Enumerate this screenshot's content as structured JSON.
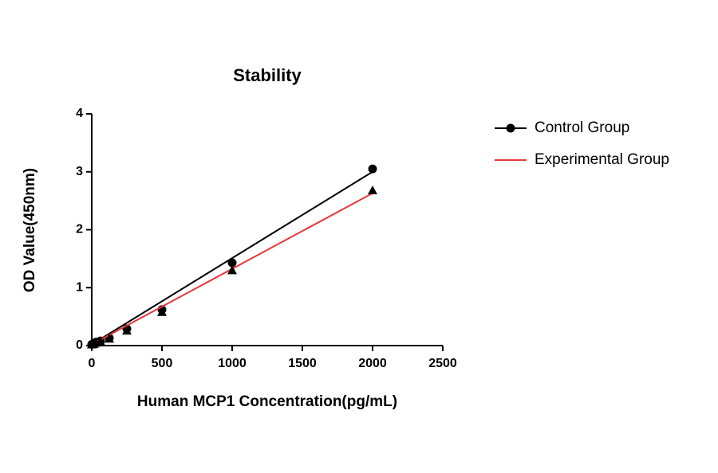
{
  "chart_data": {
    "type": "scatter",
    "title": "Stability",
    "x_label": "Human MCP1 Concentration(pg/mL)",
    "y_label": "OD Value(450nm)",
    "x": [
      0,
      15.6,
      31.25,
      62.5,
      125,
      250,
      500,
      1000,
      2000
    ],
    "series": [
      {
        "name": "Control Group",
        "color": "#000000",
        "marker": "circle",
        "line_color": "#000000",
        "values": [
          0.02,
          0.04,
          0.06,
          0.08,
          0.13,
          0.29,
          0.62,
          1.43,
          3.05
        ],
        "fit_x": [
          0,
          2000
        ],
        "fit": [
          0.02,
          3.0
        ]
      },
      {
        "name": "Experimental Group",
        "color": "#000000",
        "marker": "triangle",
        "line_color": "#e8383b",
        "values": [
          0.02,
          0.03,
          0.05,
          0.07,
          0.12,
          0.26,
          0.58,
          1.3,
          2.68
        ],
        "fit_x": [
          0,
          2000
        ],
        "fit": [
          0.02,
          2.63
        ]
      }
    ],
    "xlim": [
      0,
      2500
    ],
    "xticks": [
      0,
      500,
      1000,
      1500,
      2000,
      2500
    ],
    "ylim": [
      0,
      4
    ],
    "yticks": [
      0,
      1,
      2,
      3,
      4
    ],
    "grid": false,
    "legend": "right"
  }
}
